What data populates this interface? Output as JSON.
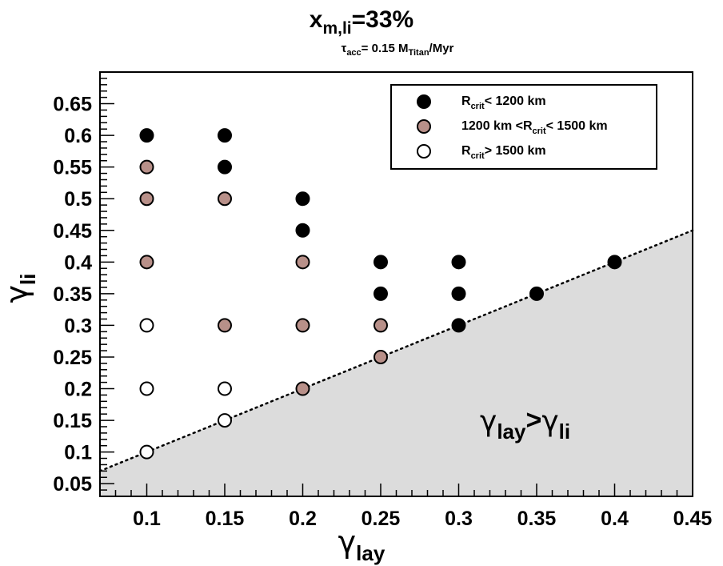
{
  "chart_data": {
    "type": "scatter",
    "title": {
      "main": "x",
      "main_sub": "m,li",
      "main_suffix": "=33%"
    },
    "subtitle": {
      "sym": "τ",
      "sym_sub": "acc",
      "text": "= 0.15 M",
      "text_sub": "Titan",
      "suffix": "/Myr"
    },
    "xlabel": {
      "sym": "γ",
      "sub": "lay"
    },
    "ylabel": {
      "sym": "γ",
      "sub": "li"
    },
    "xlim": [
      0.07,
      0.45
    ],
    "ylim": [
      0.03,
      0.7
    ],
    "xticks": [
      "0.1",
      "0.15",
      "0.2",
      "0.25",
      "0.3",
      "0.35",
      "0.4",
      "0.45"
    ],
    "yticks": [
      "0.05",
      "0.1",
      "0.15",
      "0.2",
      "0.25",
      "0.3",
      "0.35",
      "0.4",
      "0.45",
      "0.5",
      "0.55",
      "0.6",
      "0.65"
    ],
    "region_label": {
      "sym1": "γ",
      "sub1": "lay",
      "op": ">",
      "sym2": "γ",
      "sub2": "li"
    },
    "boundary_line": {
      "style": "dotted",
      "points": [
        [
          0.07,
          0.07
        ],
        [
          0.45,
          0.45
        ]
      ]
    },
    "shaded_region": "y < x",
    "legend_position": "top-right",
    "colors": {
      "black": "#000000",
      "brown": "#b89089",
      "white": "#ffffff",
      "shade": "#dcdcdc"
    },
    "series": [
      {
        "legend": {
          "pre": "R",
          "sub": "crit",
          "post": "< 1200 km"
        },
        "color": "#000000",
        "points": [
          [
            0.1,
            0.6
          ],
          [
            0.15,
            0.6
          ],
          [
            0.15,
            0.55
          ],
          [
            0.2,
            0.5
          ],
          [
            0.2,
            0.45
          ],
          [
            0.25,
            0.4
          ],
          [
            0.25,
            0.35
          ],
          [
            0.3,
            0.4
          ],
          [
            0.3,
            0.35
          ],
          [
            0.3,
            0.3
          ],
          [
            0.35,
            0.35
          ],
          [
            0.4,
            0.4
          ]
        ]
      },
      {
        "legend": {
          "pre": "1200 km <R",
          "sub": "crit",
          "post": "< 1500 km"
        },
        "color": "#b89089",
        "points": [
          [
            0.1,
            0.55
          ],
          [
            0.1,
            0.5
          ],
          [
            0.1,
            0.4
          ],
          [
            0.15,
            0.5
          ],
          [
            0.15,
            0.3
          ],
          [
            0.2,
            0.4
          ],
          [
            0.2,
            0.3
          ],
          [
            0.2,
            0.2
          ],
          [
            0.25,
            0.3
          ],
          [
            0.25,
            0.25
          ]
        ]
      },
      {
        "legend": {
          "pre": "R",
          "sub": "crit",
          "post": "> 1500 km"
        },
        "color": "#ffffff",
        "points": [
          [
            0.1,
            0.3
          ],
          [
            0.1,
            0.2
          ],
          [
            0.1,
            0.1
          ],
          [
            0.15,
            0.2
          ],
          [
            0.15,
            0.15
          ]
        ]
      }
    ]
  }
}
